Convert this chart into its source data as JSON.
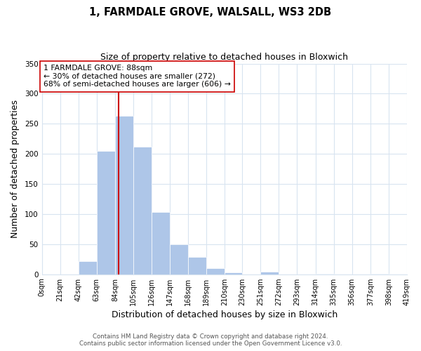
{
  "title": "1, FARMDALE GROVE, WALSALL, WS3 2DB",
  "subtitle": "Size of property relative to detached houses in Bloxwich",
  "xlabel": "Distribution of detached houses by size in Bloxwich",
  "ylabel": "Number of detached properties",
  "bar_edges": [
    0,
    21,
    42,
    63,
    84,
    105,
    126,
    147,
    168,
    189,
    210,
    230,
    251,
    272,
    293,
    314,
    335,
    356,
    377,
    398,
    419
  ],
  "bar_heights": [
    0,
    0,
    22,
    205,
    263,
    212,
    103,
    50,
    29,
    10,
    3,
    0,
    4,
    0,
    0,
    1,
    0,
    0,
    1,
    0
  ],
  "bar_color": "#aec6e8",
  "property_line_x": 88,
  "property_line_color": "#cc0000",
  "annotation_text": "1 FARMDALE GROVE: 88sqm\n← 30% of detached houses are smaller (272)\n68% of semi-detached houses are larger (606) →",
  "annotation_box_color": "#ffffff",
  "annotation_box_edge_color": "#cc0000",
  "ylim": [
    0,
    350
  ],
  "yticks": [
    0,
    50,
    100,
    150,
    200,
    250,
    300,
    350
  ],
  "tick_labels": [
    "0sqm",
    "21sqm",
    "42sqm",
    "63sqm",
    "84sqm",
    "105sqm",
    "126sqm",
    "147sqm",
    "168sqm",
    "189sqm",
    "210sqm",
    "230sqm",
    "251sqm",
    "272sqm",
    "293sqm",
    "314sqm",
    "335sqm",
    "356sqm",
    "377sqm",
    "398sqm",
    "419sqm"
  ],
  "footer_line1": "Contains HM Land Registry data © Crown copyright and database right 2024.",
  "footer_line2": "Contains public sector information licensed under the Open Government Licence v3.0.",
  "background_color": "#ffffff",
  "grid_color": "#d8e4f0",
  "title_fontsize": 10.5,
  "subtitle_fontsize": 9,
  "axis_label_fontsize": 9,
  "tick_fontsize": 7,
  "annotation_fontsize": 7.8,
  "footer_fontsize": 6.2
}
